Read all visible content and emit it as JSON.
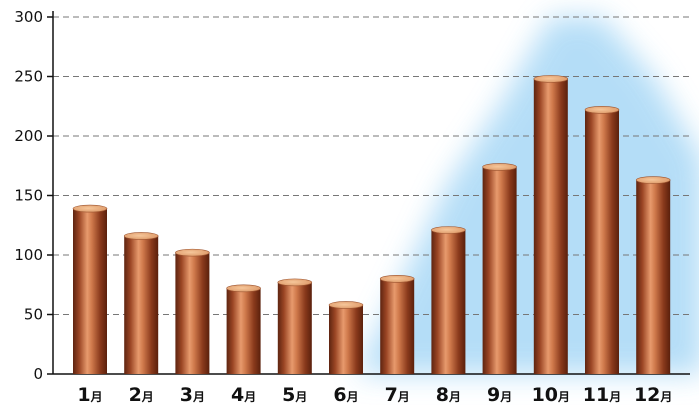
{
  "chart_data": {
    "type": "bar",
    "title": "",
    "xlabel": "",
    "ylabel": "",
    "categories": [
      {
        "num": "1",
        "unit": "月"
      },
      {
        "num": "2",
        "unit": "月"
      },
      {
        "num": "3",
        "unit": "月"
      },
      {
        "num": "4",
        "unit": "月"
      },
      {
        "num": "5",
        "unit": "月"
      },
      {
        "num": "6",
        "unit": "月"
      },
      {
        "num": "7",
        "unit": "月"
      },
      {
        "num": "8",
        "unit": "月"
      },
      {
        "num": "9",
        "unit": "月"
      },
      {
        "num": "10",
        "unit": "月"
      },
      {
        "num": "11",
        "unit": "月"
      },
      {
        "num": "12",
        "unit": "月"
      }
    ],
    "values": [
      139,
      116,
      102,
      72,
      77,
      58,
      80,
      121,
      174,
      248,
      222,
      163
    ],
    "ylim": [
      0,
      300
    ],
    "yticks": [
      "0",
      "50",
      "100",
      "150",
      "200",
      "250",
      "300"
    ],
    "grid": true,
    "legend": "none",
    "colors": {
      "bar_dark": "#6e2a12",
      "bar_mid": "#c56a3d",
      "bar_light": "#f3b58a",
      "bar_top": "#e9b07c",
      "glow": "#a8d8f6",
      "grid": "#777777",
      "axis": "#111111"
    }
  }
}
